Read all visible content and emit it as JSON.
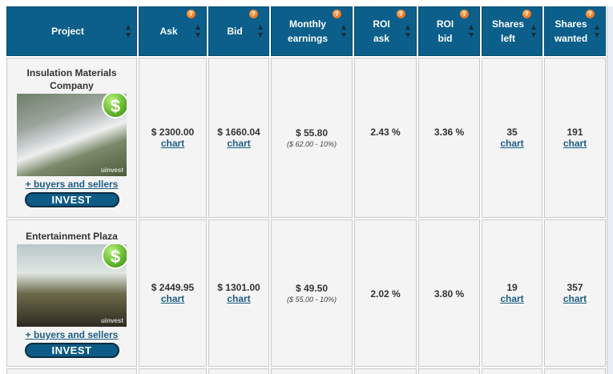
{
  "columns": [
    {
      "key": "project",
      "label": "Project",
      "help": false
    },
    {
      "key": "ask",
      "label": "Ask",
      "help": true
    },
    {
      "key": "bid",
      "label": "Bid",
      "help": true
    },
    {
      "key": "monthly",
      "label": "Monthly\nearnings",
      "help": true
    },
    {
      "key": "roi_ask",
      "label": "ROI\nask",
      "help": true
    },
    {
      "key": "roi_bid",
      "label": "ROI\nbid",
      "help": true
    },
    {
      "key": "shares_left",
      "label": "Shares\nleft",
      "help": true
    },
    {
      "key": "shares_wanted",
      "label": "Shares\nwanted",
      "help": true
    }
  ],
  "help_glyph": "?",
  "chart_link": "chart",
  "buyers_link": "+ buyers and sellers",
  "invest_label": "INVEST",
  "dollar_glyph": "$",
  "watermark": "uinvest",
  "rows": [
    {
      "title": "Insulation Materials Company",
      "image": "factory-machinery-photo",
      "ask": "$ 2300.00",
      "bid": "$ 1660.04",
      "monthly": "$ 55.80",
      "monthly_sub": "($ 62.00 - 10%)",
      "roi_ask": "2.43 %",
      "roi_bid": "3.36 %",
      "shares_left": "35",
      "shares_wanted": "191"
    },
    {
      "title": "Entertainment Plaza",
      "image": "restaurant-interior-photo",
      "ask": "$ 2449.95",
      "bid": "$ 1301.00",
      "monthly": "$ 49.50",
      "monthly_sub": "($ 55.00 - 10%)",
      "roi_ask": "2.02 %",
      "roi_bid": "3.80 %",
      "shares_left": "19",
      "shares_wanted": "357"
    }
  ]
}
